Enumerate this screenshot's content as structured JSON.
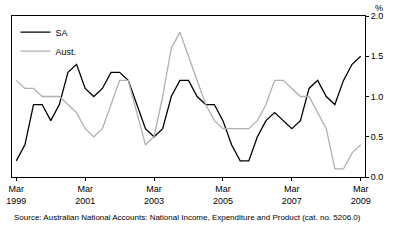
{
  "chart_data": {
    "type": "line",
    "y_label": "%",
    "source": "Source: Australian National Accounts: National Income, Expenditure and Product (cat. no. 5206.0)",
    "categories": [
      "Mar 1999",
      null,
      null,
      null,
      null,
      null,
      null,
      null,
      "Mar 2001",
      null,
      null,
      null,
      null,
      null,
      null,
      null,
      "Mar 2003",
      null,
      null,
      null,
      null,
      null,
      null,
      null,
      "Mar 2005",
      null,
      null,
      null,
      null,
      null,
      null,
      null,
      "Mar 2007",
      null,
      null,
      null,
      null,
      null,
      null,
      null,
      "Mar 2009"
    ],
    "series": [
      {
        "name": "SA",
        "color": "#000000",
        "values": [
          0.2,
          0.4,
          0.9,
          0.9,
          0.7,
          0.9,
          1.3,
          1.4,
          1.1,
          1.0,
          1.1,
          1.3,
          1.3,
          1.2,
          0.9,
          0.6,
          0.5,
          0.6,
          1.0,
          1.2,
          1.2,
          1.0,
          0.9,
          0.9,
          0.7,
          0.4,
          0.2,
          0.2,
          0.5,
          0.7,
          0.8,
          0.7,
          0.6,
          0.7,
          1.1,
          1.2,
          1.0,
          0.9,
          1.2,
          1.4,
          1.5
        ]
      },
      {
        "name": "Aust.",
        "color": "#b0b0b0",
        "values": [
          1.2,
          1.1,
          1.1,
          1.0,
          1.0,
          1.0,
          0.9,
          0.8,
          0.6,
          0.5,
          0.6,
          0.9,
          1.2,
          1.2,
          0.8,
          0.4,
          0.5,
          1.0,
          1.6,
          1.8,
          1.5,
          1.2,
          0.9,
          0.7,
          0.6,
          0.6,
          0.6,
          0.6,
          0.7,
          0.9,
          1.2,
          1.2,
          1.1,
          1.0,
          1.0,
          0.8,
          0.6,
          0.1,
          0.1,
          0.3,
          0.4
        ]
      }
    ],
    "ylim": [
      0,
      2
    ],
    "yticks": [
      {
        "value": 0,
        "label": "0.0"
      },
      0.5,
      {
        "value": 1,
        "label": "1.0"
      },
      1.5,
      {
        "value": 2,
        "label": "2.0"
      }
    ],
    "grid": false,
    "legend": "top left"
  }
}
